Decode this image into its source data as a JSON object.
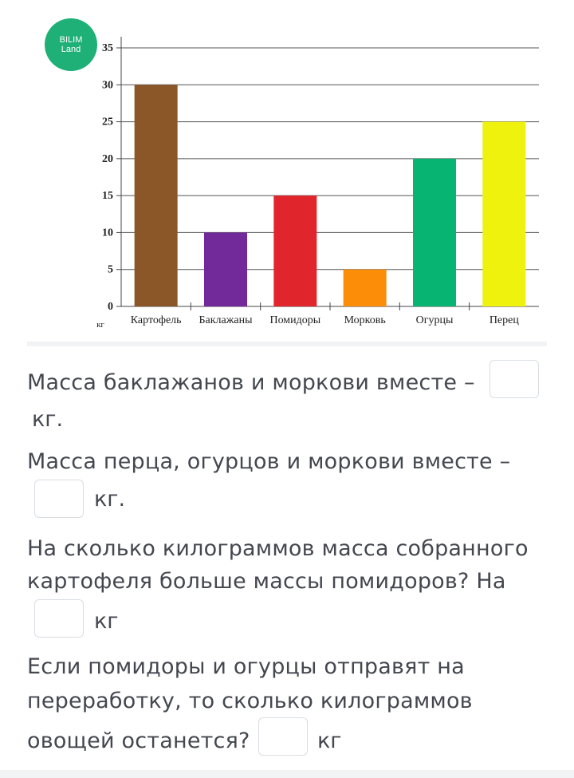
{
  "logo": {
    "line1": "BILIM",
    "line2": "Land"
  },
  "chart_data": {
    "type": "bar",
    "categories": [
      "Картофель",
      "Баклажаны",
      "Помидоры",
      "Морковь",
      "Огурцы",
      "Перец"
    ],
    "values": [
      30,
      10,
      15,
      5,
      20,
      25
    ],
    "colors": [
      "#8b5628",
      "#722a9a",
      "#e0262c",
      "#fb8d08",
      "#08b471",
      "#eef20c"
    ],
    "ylim": [
      0,
      35
    ],
    "yticks": [
      0,
      5,
      10,
      15,
      20,
      25,
      30,
      35
    ],
    "ylabel": "кг",
    "grid": true
  },
  "questions": {
    "q1": {
      "line1": "Масса баклажанов и моркови вместе –",
      "unit": "кг."
    },
    "q2": {
      "line1": "Масса перца, огурцов и моркови вместе –",
      "unit": "кг."
    },
    "q3": {
      "line1": "На сколько килограммов масса собранного",
      "line2": "картофеля больше массы помидоров? На",
      "unit": "кг"
    },
    "q4": {
      "line1": "Если помидоры и огурцы отправят на",
      "line2": "переработку, то сколько килограммов",
      "line3": "овощей останется?",
      "unit": "кг"
    }
  }
}
